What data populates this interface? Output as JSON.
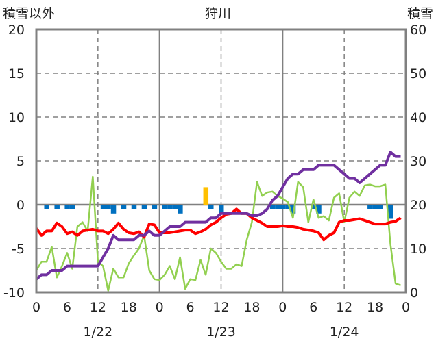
{
  "chart_data": {
    "type": "line",
    "title": "狩川",
    "left_axis_label": "積雪以外",
    "right_axis_label": "積雪",
    "ylim_left": [
      -10,
      20
    ],
    "ylim_right": [
      0,
      60
    ],
    "yticks_left": [
      20,
      15,
      10,
      5,
      0,
      -5,
      -10
    ],
    "yticks_right": [
      60,
      50,
      40,
      30,
      20,
      10,
      0
    ],
    "xlim_hours": [
      0,
      72
    ],
    "xtick_labels": [
      "0",
      "6",
      "12",
      "18",
      "0",
      "6",
      "12",
      "18",
      "0",
      "6",
      "12",
      "18",
      "0"
    ],
    "date_labels": [
      "1/22",
      "1/23",
      "1/24"
    ],
    "grid": true,
    "colors": {
      "temperature": "#ff0000",
      "green": "#92d050",
      "snow_depth": "#7030a0",
      "bars_neg": "#0070c0",
      "bars_pos": "#ffc000",
      "axis": "#808080"
    },
    "series": [
      {
        "name": "temperature",
        "axis": "left",
        "color": "#ff0000",
        "values": [
          -2.7,
          -3.5,
          -3.0,
          -3.0,
          -2.1,
          -2.5,
          -3.3,
          -3.1,
          -3.5,
          -3.0,
          -2.9,
          -2.8,
          -3.0,
          -3.0,
          -3.3,
          -2.8,
          -2.1,
          -2.8,
          -3.2,
          -3.3,
          -3.1,
          -3.7,
          -2.2,
          -2.3,
          -3.2,
          -3.2,
          -3.2,
          -3.1,
          -3.0,
          -2.9,
          -2.9,
          -3.3,
          -3.1,
          -2.8,
          -2.3,
          -2.0,
          -1.5,
          -1.1,
          -1.0,
          -0.5,
          -1.0,
          -1.0,
          -1.5,
          -1.8,
          -2.1,
          -2.5,
          -2.5,
          -2.5,
          -2.4,
          -2.5,
          -2.5,
          -2.6,
          -2.8,
          -2.9,
          -3.0,
          -3.2,
          -4.0,
          -3.5,
          -3.2,
          -2.0,
          -1.8,
          -1.8,
          -1.7,
          -1.6,
          -1.8,
          -2.0,
          -2.2,
          -2.2,
          -2.2,
          -2.0,
          -1.9,
          -1.5
        ]
      },
      {
        "name": "green-series",
        "axis": "left",
        "color": "#92d050",
        "values": [
          -7.5,
          -6.5,
          -6.5,
          -4.8,
          -8.3,
          -7.0,
          -5.5,
          -7.3,
          -2.5,
          -2.0,
          -3.0,
          3.2,
          -6.5,
          -7.0,
          -9.8,
          -7.3,
          -8.3,
          -8.3,
          -6.7,
          -5.8,
          -5.0,
          -3.5,
          -7.5,
          -8.5,
          -8.6,
          -8.0,
          -7.0,
          -8.5,
          -6.0,
          -9.6,
          -8.5,
          -8.6,
          -6.3,
          -8.0,
          -5.0,
          -5.5,
          -6.5,
          -7.3,
          -7.3,
          -6.8,
          -7.0,
          -4.0,
          -2.0,
          2.6,
          1.0,
          1.4,
          1.5,
          1.0,
          0.7,
          0.3,
          -1.5,
          2.6,
          2.0,
          -2.0,
          0.6,
          -1.5,
          -1.3,
          -1.8,
          0.8,
          1.3,
          -2.0,
          0.8,
          1.5,
          1.0,
          2.2,
          2.3,
          2.1,
          2.1,
          2.3,
          -4.5,
          -9.0,
          -9.2
        ]
      },
      {
        "name": "snow_depth",
        "axis": "right",
        "color": "#7030a0",
        "values": [
          3,
          4,
          4,
          5,
          5,
          5,
          6,
          6,
          6,
          6,
          6,
          6,
          6,
          8,
          10,
          13,
          12,
          12,
          12,
          12,
          13,
          13,
          14,
          13,
          13,
          14,
          15,
          15,
          15,
          16,
          16,
          16,
          16,
          16,
          17,
          17,
          18,
          18,
          18,
          18,
          18,
          18,
          17.5,
          17.5,
          18,
          19,
          21,
          22,
          24,
          26,
          27,
          27,
          28,
          28,
          28,
          29,
          29,
          29,
          29,
          28,
          27,
          26,
          26,
          25,
          26,
          27,
          28,
          29,
          29,
          32,
          31,
          31
        ]
      }
    ],
    "bars": {
      "axis": "left",
      "hours": [
        2,
        4,
        6,
        7,
        13,
        14,
        15,
        17,
        19,
        21,
        23,
        25,
        26,
        27,
        28,
        33,
        34,
        36,
        46,
        47,
        48,
        49,
        50,
        54,
        55,
        65,
        66,
        67,
        69
      ],
      "values": [
        -0.5,
        -0.5,
        -0.5,
        -0.5,
        -0.5,
        -0.5,
        -1.0,
        -0.5,
        -0.5,
        -0.5,
        -0.5,
        -0.5,
        -0.5,
        -0.5,
        -1.0,
        2.0,
        -0.5,
        -1.0,
        -0.5,
        -0.5,
        -0.5,
        -0.5,
        -1.0,
        -0.5,
        -1.0,
        -0.5,
        -0.5,
        -0.5,
        -1.6
      ]
    }
  }
}
